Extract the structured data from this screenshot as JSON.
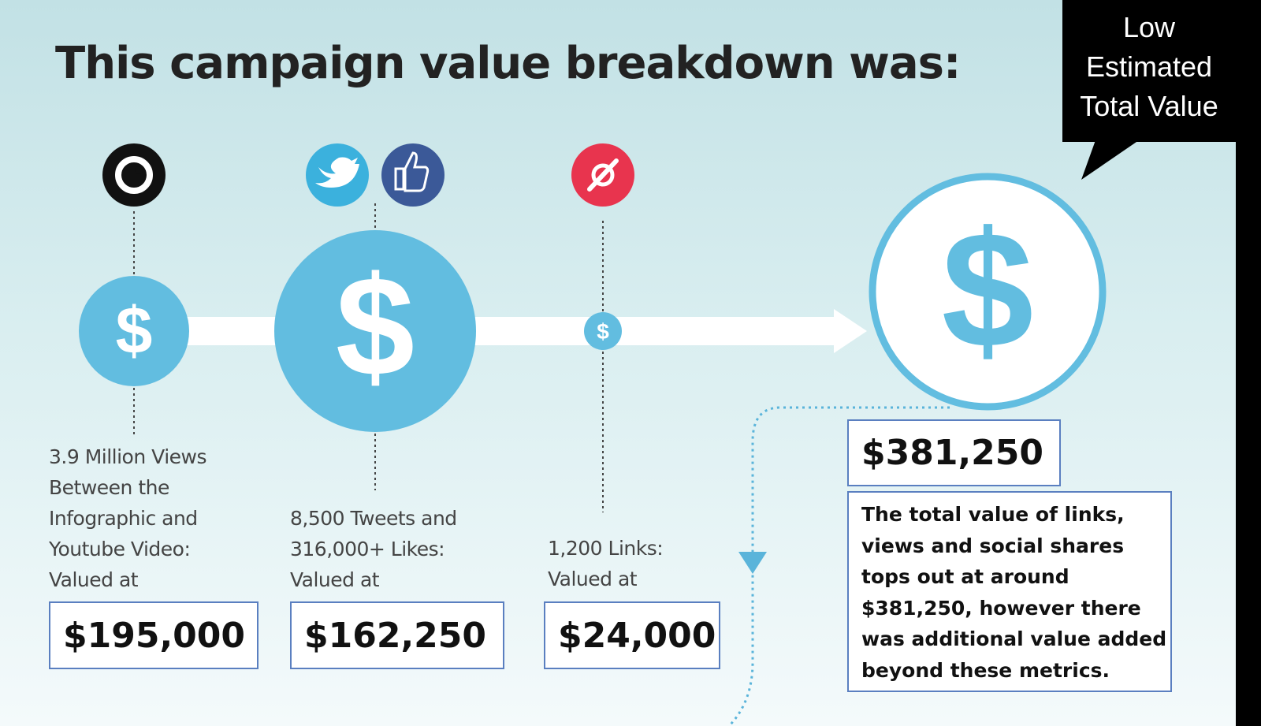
{
  "title": "This campaign value breakdown was:",
  "callout": {
    "lines": [
      "Low",
      "Estimated",
      "Total Value"
    ]
  },
  "items": [
    {
      "icon": "eye-icon",
      "label_lines": [
        "3.9 Million Views",
        "Between the",
        "Infographic and",
        "Youtube Video:",
        "Valued at"
      ],
      "value": "$195,000"
    },
    {
      "icon": "twitter-facebook-icons",
      "label_lines": [
        "8,500 Tweets and",
        "316,000+ Likes:",
        "Valued at"
      ],
      "value": "$162,250"
    },
    {
      "icon": "link-icon",
      "label_lines": [
        "1,200 Links:",
        "Valued at"
      ],
      "value": "$24,000"
    }
  ],
  "total": {
    "value": "$381,250",
    "description_lines": [
      "The total value of links,",
      "views and social shares",
      "tops out at around",
      "$381,250, however there",
      "was additional value added",
      "beyond these metrics."
    ]
  },
  "colors": {
    "accent": "#62bde0",
    "twitter": "#3bb1dd",
    "facebook": "#3b5998",
    "link": "#e8344e"
  }
}
